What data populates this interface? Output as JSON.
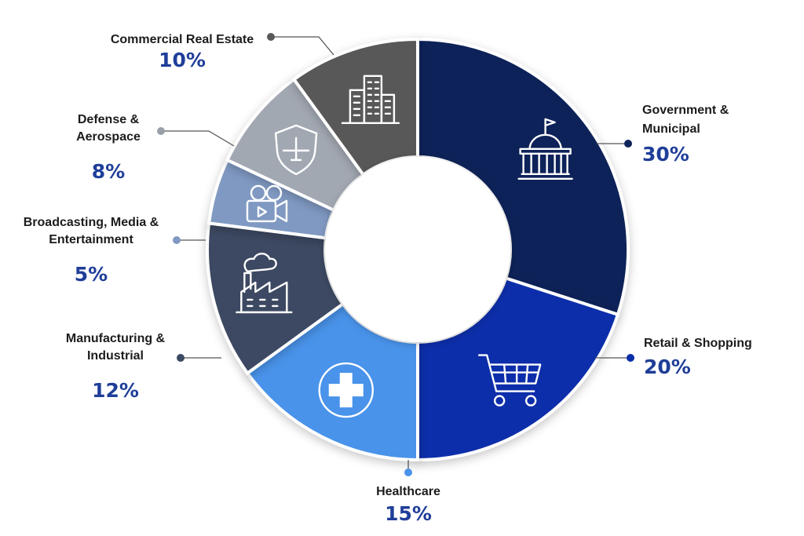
{
  "chart_data": {
    "type": "pie",
    "variant": "donut",
    "title": "",
    "unit": "%",
    "slices": [
      {
        "name": "Government & Municipal",
        "name_lines": [
          "Government &",
          "Municipal"
        ],
        "value": 30,
        "value_label": "30%",
        "color": "#0e2459",
        "icon": "capitol-building-icon"
      },
      {
        "name": "Retail & Shopping",
        "name_lines": [
          "Retail & Shopping"
        ],
        "value": 20,
        "value_label": "20%",
        "color": "#0a2eaa",
        "icon": "shopping-cart-icon"
      },
      {
        "name": "Healthcare",
        "name_lines": [
          "Healthcare"
        ],
        "value": 15,
        "value_label": "15%",
        "color": "#4a93ea",
        "icon": "medical-cross-icon"
      },
      {
        "name": "Manufacturing & Industrial",
        "name_lines": [
          "Manufacturing &",
          "Industrial"
        ],
        "value": 12,
        "value_label": "12%",
        "color": "#3c4962",
        "icon": "factory-icon"
      },
      {
        "name": "Broadcasting, Media & Entertainment",
        "name_lines": [
          "Broadcasting, Media &",
          "Entertainment"
        ],
        "value": 5,
        "value_label": "5%",
        "color": "#8099c2",
        "icon": "video-camera-icon"
      },
      {
        "name": "Defense & Aerospace",
        "name_lines": [
          "Defense &",
          "Aerospace"
        ],
        "value": 8,
        "value_label": "8%",
        "color": "#a2a8b2",
        "icon": "shield-plane-icon"
      },
      {
        "name": "Commercial Real Estate",
        "name_lines": [
          "Commercial Real Estate"
        ],
        "value": 10,
        "value_label": "10%",
        "color": "#595959",
        "icon": "office-buildings-icon"
      }
    ],
    "legend": "none"
  }
}
